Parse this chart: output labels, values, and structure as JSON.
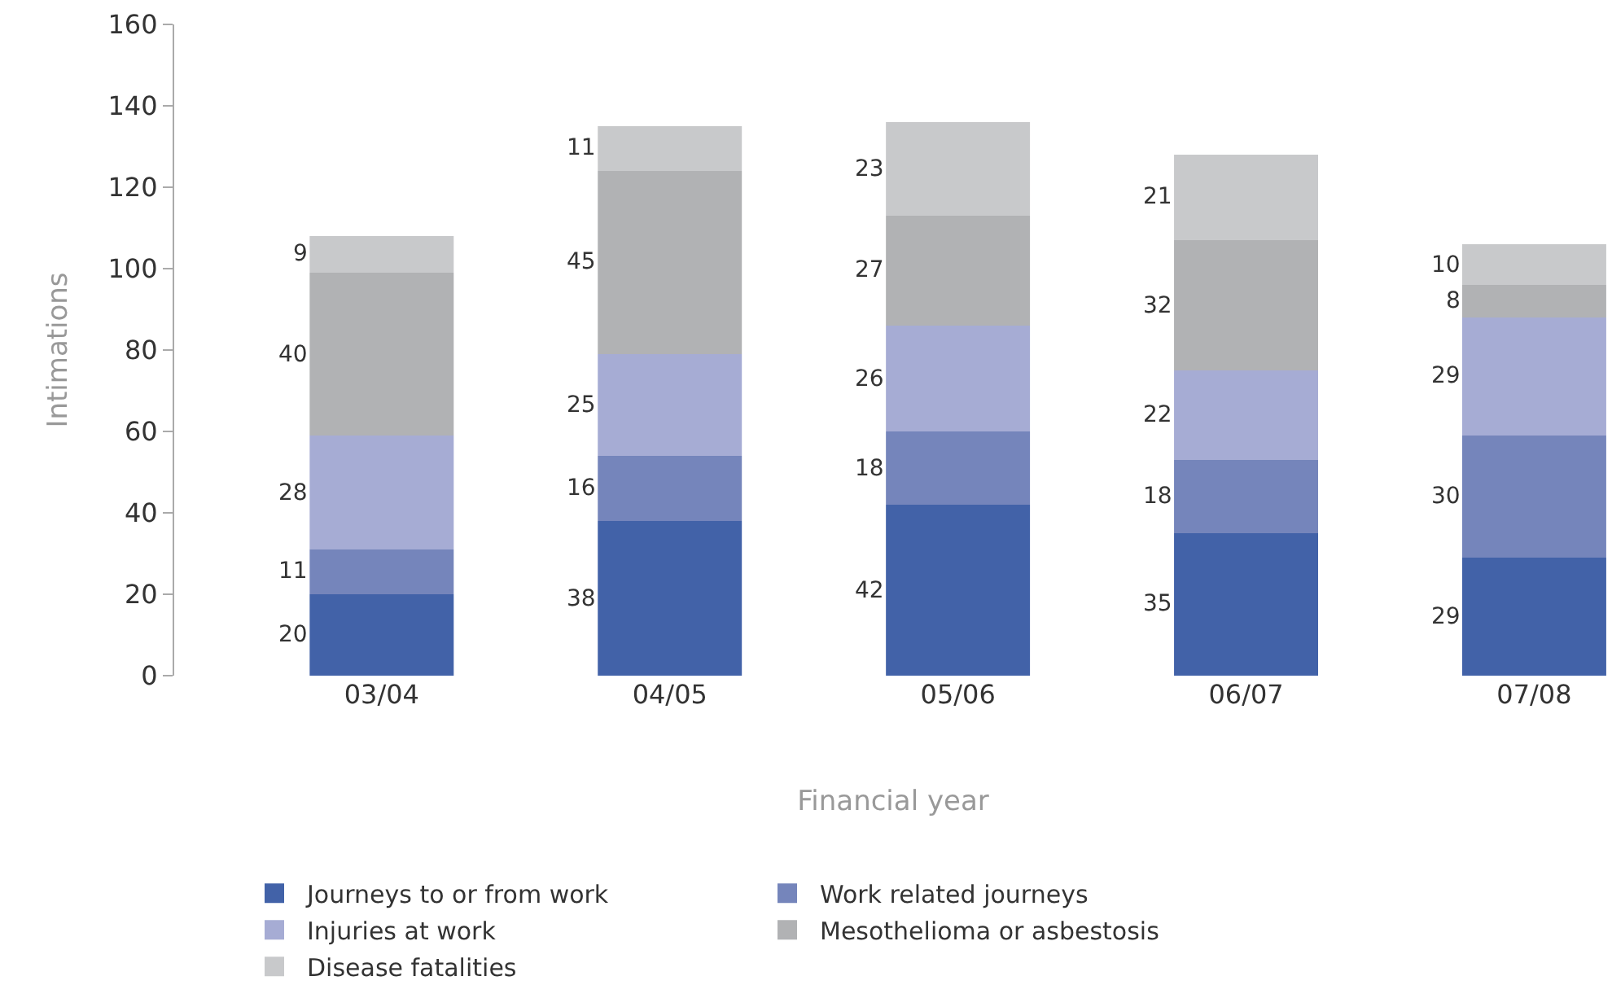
{
  "chart_data": {
    "type": "bar",
    "stacked": true,
    "xlabel": "Financial year",
    "ylabel": "Intimations",
    "categories": [
      "03/04",
      "04/05",
      "05/06",
      "06/07",
      "07/08"
    ],
    "series": [
      {
        "name": "Journeys to or from work",
        "color": "#4262a8",
        "values": [
          20,
          38,
          42,
          35,
          29
        ]
      },
      {
        "name": "Work related journeys",
        "color": "#7585bb",
        "values": [
          11,
          16,
          18,
          18,
          30
        ]
      },
      {
        "name": "Injuries at work",
        "color": "#a6acd4",
        "values": [
          28,
          25,
          26,
          22,
          29
        ]
      },
      {
        "name": "Mesothelioma or asbestosis",
        "color": "#b1b2b4",
        "values": [
          40,
          45,
          27,
          32,
          8
        ]
      },
      {
        "name": "Disease fatalities",
        "color": "#c8c9cb",
        "values": [
          9,
          11,
          23,
          21,
          10
        ]
      }
    ],
    "ylim": [
      0,
      160
    ],
    "yticks": [
      0,
      20,
      40,
      60,
      80,
      100,
      120,
      140,
      160
    ],
    "data_labels": true,
    "grid": false,
    "legend": "bottom"
  }
}
